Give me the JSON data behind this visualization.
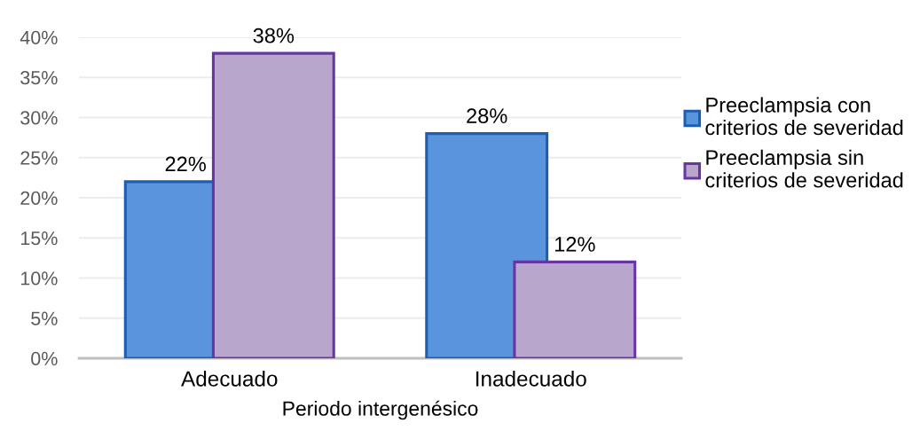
{
  "chart_data": {
    "type": "bar",
    "xlabel": "Periodo intergenésico",
    "categories": [
      "Adecuado",
      "Inadecuado"
    ],
    "series": [
      {
        "name": "Preeclampsia con\ncriterios de severidad",
        "color": "#5a94dc",
        "values": [
          22,
          28
        ],
        "value_labels": [
          "22%",
          "28%"
        ]
      },
      {
        "name": "Preeclampsia sin\ncriterios de severidad",
        "color": "#b8a6cc",
        "values": [
          38,
          12
        ],
        "value_labels": [
          "38%",
          "12%"
        ]
      }
    ],
    "ylim": [
      0,
      40
    ],
    "yticks": [
      {
        "value": 0,
        "label": "0%"
      },
      {
        "value": 5,
        "label": "5%"
      },
      {
        "value": 10,
        "label": "10%"
      },
      {
        "value": 15,
        "label": "15%"
      },
      {
        "value": 20,
        "label": "20%"
      },
      {
        "value": 25,
        "label": "25%"
      },
      {
        "value": 30,
        "label": "30%"
      },
      {
        "value": 35,
        "label": "35%"
      },
      {
        "value": 40,
        "label": "40%"
      }
    ],
    "grid": "y",
    "legend": "right"
  }
}
